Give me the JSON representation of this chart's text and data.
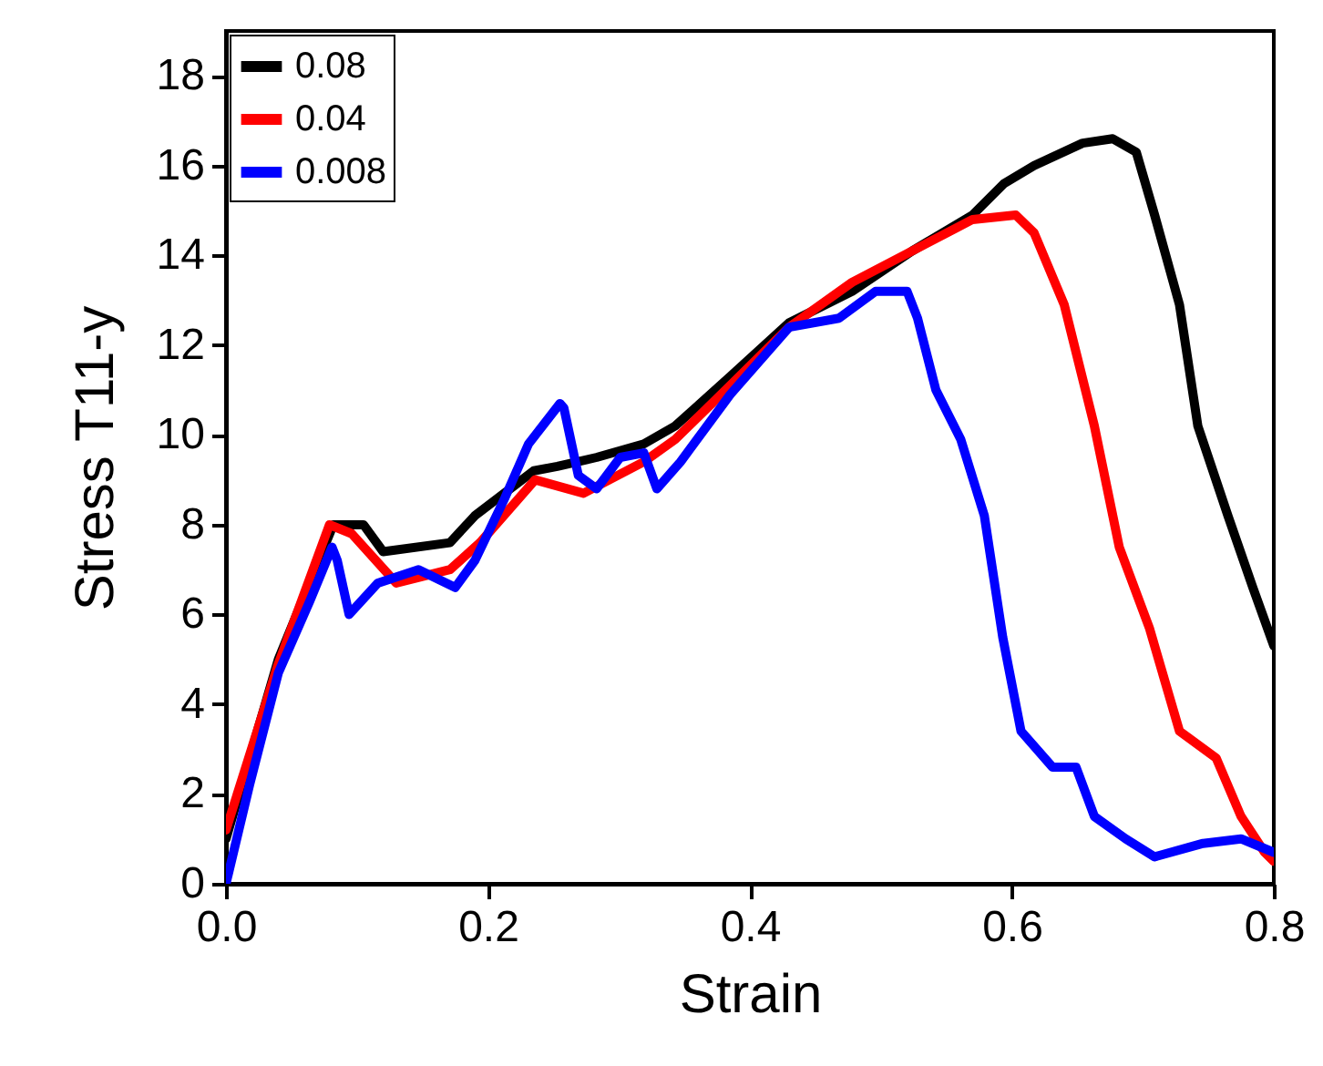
{
  "chart_data": {
    "type": "line",
    "xlabel": "Strain",
    "ylabel": "Stress T11-y",
    "xlim": [
      0,
      0.8
    ],
    "xticks": [
      {
        "value": 0,
        "label": "0.0"
      },
      0.2,
      0.4,
      0.6,
      0.8
    ],
    "ylim": [
      0,
      19
    ],
    "yticks": [
      0,
      2,
      4,
      6,
      8,
      10,
      12,
      14,
      16,
      18
    ],
    "legend": "top left",
    "line_style": "solid",
    "marker": "none",
    "series": [
      {
        "name": "0.08",
        "color": "#000000",
        "x": [
          0,
          0.04,
          0.082,
          0.105,
          0.12,
          0.171,
          0.19,
          0.235,
          0.253,
          0.283,
          0.319,
          0.343,
          0.385,
          0.43,
          0.478,
          0.524,
          0.57,
          0.594,
          0.617,
          0.654,
          0.677,
          0.695,
          0.709,
          0.728,
          0.742,
          0.765,
          0.784,
          0.8
        ],
        "values": [
          1.0,
          5.0,
          8.0,
          8.0,
          7.4,
          7.6,
          8.2,
          9.2,
          9.3,
          9.5,
          9.8,
          10.2,
          11.3,
          12.5,
          13.2,
          14.1,
          14.9,
          15.6,
          16.0,
          16.5,
          16.6,
          16.3,
          14.9,
          12.9,
          10.2,
          8.2,
          6.6,
          5.3
        ]
      },
      {
        "name": "0.04",
        "color": "#ff0000",
        "x": [
          0,
          0.04,
          0.079,
          0.096,
          0.13,
          0.171,
          0.194,
          0.236,
          0.273,
          0.319,
          0.343,
          0.385,
          0.43,
          0.478,
          0.524,
          0.57,
          0.603,
          0.617,
          0.64,
          0.663,
          0.682,
          0.705,
          0.728,
          0.756,
          0.775,
          0.793,
          0.8
        ],
        "values": [
          1.2,
          4.9,
          8.0,
          7.8,
          6.7,
          7.0,
          7.6,
          9.0,
          8.7,
          9.4,
          9.9,
          11.1,
          12.4,
          13.4,
          14.1,
          14.8,
          14.9,
          14.5,
          12.9,
          10.2,
          7.5,
          5.7,
          3.4,
          2.8,
          1.5,
          0.7,
          0.5
        ]
      },
      {
        "name": "0.008",
        "color": "#0000ff",
        "x": [
          0,
          0.018,
          0.04,
          0.064,
          0.081,
          0.085,
          0.094,
          0.116,
          0.147,
          0.175,
          0.19,
          0.213,
          0.231,
          0.255,
          0.258,
          0.269,
          0.283,
          0.301,
          0.319,
          0.329,
          0.347,
          0.385,
          0.43,
          0.468,
          0.496,
          0.52,
          0.528,
          0.542,
          0.561,
          0.579,
          0.593,
          0.607,
          0.631,
          0.649,
          0.663,
          0.687,
          0.709,
          0.746,
          0.775,
          0.8
        ],
        "values": [
          0,
          2.2,
          4.7,
          6.3,
          7.5,
          7.2,
          6.0,
          6.7,
          7.0,
          6.6,
          7.2,
          8.6,
          9.8,
          10.7,
          10.6,
          9.1,
          8.8,
          9.5,
          9.6,
          8.8,
          9.4,
          10.9,
          12.4,
          12.6,
          13.2,
          13.2,
          12.6,
          11.0,
          9.9,
          8.2,
          5.5,
          3.4,
          2.6,
          2.6,
          1.5,
          1.0,
          0.6,
          0.9,
          1.0,
          0.7
        ]
      }
    ]
  }
}
